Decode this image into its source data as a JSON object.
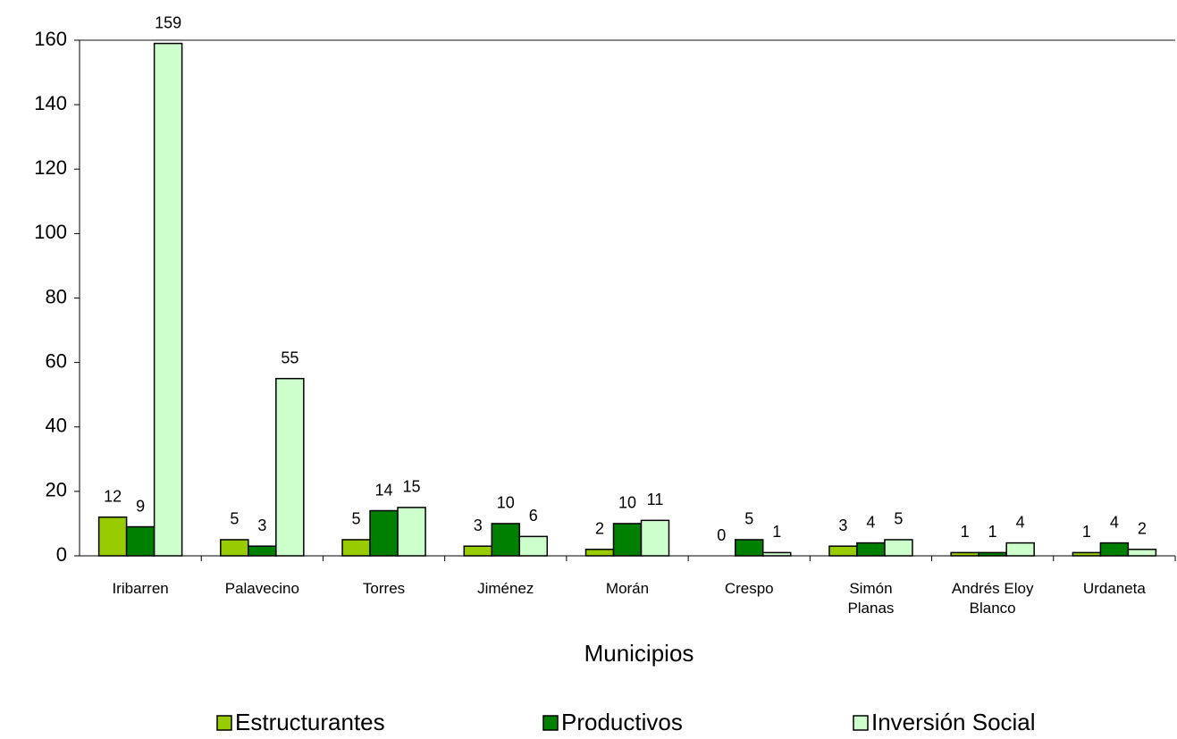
{
  "chart_data": {
    "type": "bar",
    "x_label": "Municipios",
    "categories": [
      "Iribarren",
      "Palavecino",
      "Torres",
      "Jiménez",
      "Morán",
      "Crespo",
      "Simón Planas",
      "Andrés Eloy Blanco",
      "Urdaneta"
    ],
    "series": [
      {
        "name": "Estructurantes",
        "color": "#99cc00",
        "values": [
          12,
          5,
          5,
          3,
          2,
          0,
          3,
          1,
          1
        ]
      },
      {
        "name": "Productivos",
        "color": "#008000",
        "values": [
          9,
          3,
          14,
          10,
          10,
          5,
          4,
          1,
          4
        ]
      },
      {
        "name": "Inversión Social",
        "color": "#ccffcc",
        "values": [
          159,
          55,
          15,
          6,
          11,
          1,
          5,
          4,
          2
        ]
      }
    ],
    "ylim": [
      0,
      160
    ],
    "yticks": [
      0,
      20,
      40,
      60,
      80,
      100,
      120,
      140,
      160
    ],
    "legend": "bottom"
  }
}
